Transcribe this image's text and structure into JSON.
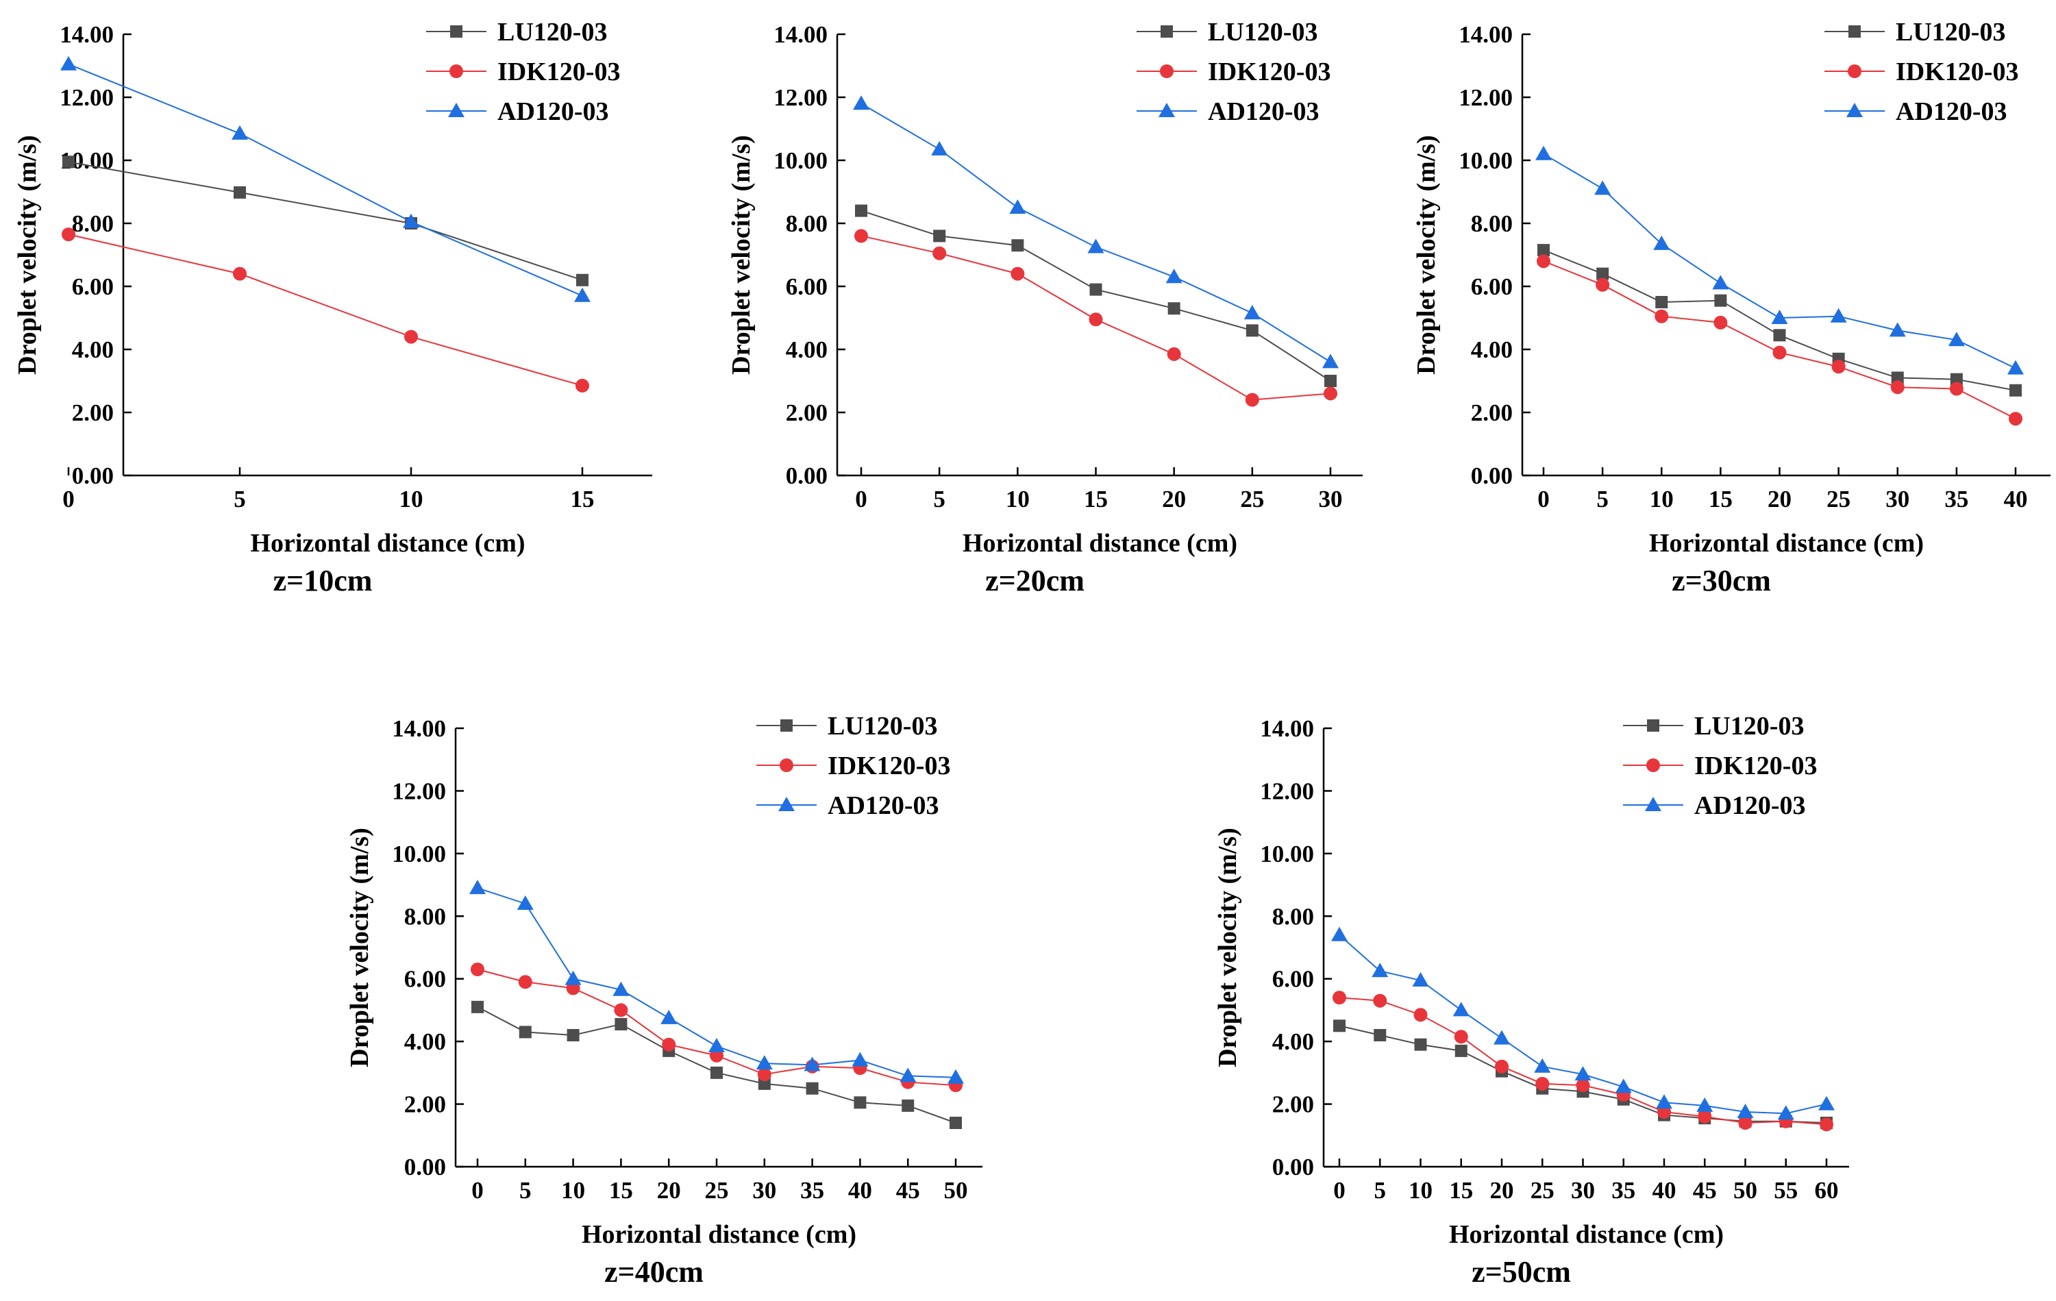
{
  "figure": {
    "y_axis_label": "Droplet velocity (m/s)",
    "x_axis_label": "Horizontal distance (cm)"
  },
  "series_styles": [
    {
      "name": "LU120-03",
      "marker": "square",
      "color": "#4d4d4d"
    },
    {
      "name": "IDK120-03",
      "marker": "circle",
      "color": "#e8353b"
    },
    {
      "name": "AD120-03",
      "marker": "triangle",
      "color": "#1f6fe0"
    }
  ],
  "chart_data": [
    {
      "type": "line",
      "title": "z=10cm",
      "xlabel": "Horizontal distance (cm)",
      "ylabel": "Droplet velocity (m/s)",
      "x": [
        0,
        5,
        10,
        15
      ],
      "ylim": [
        0,
        14
      ],
      "y_ticks": [
        "0.00",
        "2.00",
        "4.00",
        "6.00",
        "8.00",
        "10.00",
        "12.00",
        "14.00"
      ],
      "legend": "top-right",
      "series": [
        {
          "name": "LU120-03",
          "values": [
            9.95,
            8.98,
            8.0,
            6.2
          ]
        },
        {
          "name": "IDK120-03",
          "values": [
            7.65,
            6.4,
            4.4,
            2.85
          ]
        },
        {
          "name": "AD120-03",
          "values": [
            13.05,
            10.85,
            8.05,
            5.7
          ]
        }
      ]
    },
    {
      "type": "line",
      "title": "z=20cm",
      "xlabel": "Horizontal distance (cm)",
      "ylabel": "Droplet velocity (m/s)",
      "x": [
        0,
        5,
        10,
        15,
        20,
        25,
        30
      ],
      "ylim": [
        0,
        14
      ],
      "y_ticks": [
        "0.00",
        "2.00",
        "4.00",
        "6.00",
        "8.00",
        "10.00",
        "12.00",
        "14.00"
      ],
      "legend": "top-right",
      "series": [
        {
          "name": "LU120-03",
          "values": [
            8.4,
            7.6,
            7.3,
            5.9,
            5.3,
            4.6,
            3.0
          ]
        },
        {
          "name": "IDK120-03",
          "values": [
            7.6,
            7.05,
            6.4,
            4.95,
            3.85,
            2.4,
            2.6
          ]
        },
        {
          "name": "AD120-03",
          "values": [
            11.8,
            10.35,
            8.5,
            7.25,
            6.3,
            5.15,
            3.6
          ]
        }
      ]
    },
    {
      "type": "line",
      "title": "z=30cm",
      "xlabel": "Horizontal distance (cm)",
      "ylabel": "Droplet velocity (m/s)",
      "x": [
        0,
        5,
        10,
        15,
        20,
        25,
        30,
        35,
        40
      ],
      "ylim": [
        0,
        14
      ],
      "y_ticks": [
        "0.00",
        "2.00",
        "4.00",
        "6.00",
        "8.00",
        "10.00",
        "12.00",
        "14.00"
      ],
      "legend": "top-right",
      "series": [
        {
          "name": "LU120-03",
          "values": [
            7.15,
            6.4,
            5.5,
            5.55,
            4.45,
            3.7,
            3.1,
            3.05,
            2.7
          ]
        },
        {
          "name": "IDK120-03",
          "values": [
            6.8,
            6.05,
            5.05,
            4.85,
            3.9,
            3.45,
            2.8,
            2.75,
            1.8
          ]
        },
        {
          "name": "AD120-03",
          "values": [
            10.2,
            9.1,
            7.35,
            6.1,
            5.0,
            5.05,
            4.6,
            4.3,
            3.4
          ]
        }
      ]
    },
    {
      "type": "line",
      "title": "z=40cm",
      "xlabel": "Horizontal distance (cm)",
      "ylabel": "Droplet velocity (m/s)",
      "x": [
        0,
        5,
        10,
        15,
        20,
        25,
        30,
        35,
        40,
        45,
        50
      ],
      "ylim": [
        0,
        14
      ],
      "y_ticks": [
        "0.00",
        "2.00",
        "4.00",
        "6.00",
        "8.00",
        "10.00",
        "12.00",
        "14.00"
      ],
      "legend": "top-right",
      "series": [
        {
          "name": "LU120-03",
          "values": [
            5.1,
            4.3,
            4.2,
            4.55,
            3.7,
            3.0,
            2.65,
            2.5,
            2.05,
            1.95,
            1.4
          ]
        },
        {
          "name": "IDK120-03",
          "values": [
            6.3,
            5.9,
            5.7,
            5.0,
            3.9,
            3.55,
            2.95,
            3.2,
            3.15,
            2.7,
            2.6
          ]
        },
        {
          "name": "AD120-03",
          "values": [
            8.9,
            8.4,
            6.0,
            5.65,
            4.75,
            3.85,
            3.3,
            3.25,
            3.4,
            2.9,
            2.85
          ]
        }
      ]
    },
    {
      "type": "line",
      "title": "z=50cm",
      "xlabel": "Horizontal distance (cm)",
      "ylabel": "Droplet velocity (m/s)",
      "x": [
        0,
        5,
        10,
        15,
        20,
        25,
        30,
        35,
        40,
        45,
        50,
        55,
        60
      ],
      "ylim": [
        0,
        14
      ],
      "y_ticks": [
        "0.00",
        "2.00",
        "4.00",
        "6.00",
        "8.00",
        "10.00",
        "12.00",
        "14.00"
      ],
      "legend": "top-right",
      "series": [
        {
          "name": "LU120-03",
          "values": [
            4.5,
            4.2,
            3.9,
            3.7,
            3.05,
            2.5,
            2.4,
            2.15,
            1.65,
            1.55,
            1.45,
            1.45,
            1.4
          ]
        },
        {
          "name": "IDK120-03",
          "values": [
            5.4,
            5.3,
            4.85,
            4.15,
            3.2,
            2.65,
            2.6,
            2.3,
            1.75,
            1.6,
            1.4,
            1.45,
            1.35
          ]
        },
        {
          "name": "AD120-03",
          "values": [
            7.4,
            6.25,
            5.95,
            5.0,
            4.1,
            3.2,
            2.95,
            2.55,
            2.05,
            1.95,
            1.75,
            1.7,
            2.0
          ]
        }
      ]
    }
  ]
}
